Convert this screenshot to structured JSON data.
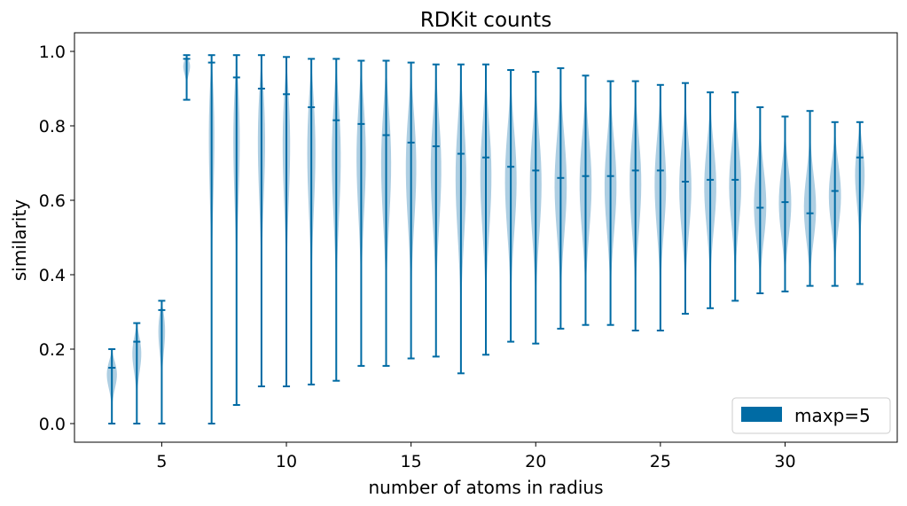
{
  "chart_data": {
    "type": "violin",
    "title": "RDKit counts",
    "xlabel": "number of atoms in radius",
    "ylabel": "similarity",
    "xlim": [
      1.5,
      34.5
    ],
    "ylim": [
      -0.05,
      1.05
    ],
    "xticks": [
      5,
      10,
      15,
      20,
      25,
      30
    ],
    "yticks": [
      0.0,
      0.2,
      0.4,
      0.6,
      0.8,
      1.0
    ],
    "ytick_labels": [
      "0.0",
      "0.2",
      "0.4",
      "0.6",
      "0.8",
      "1.0"
    ],
    "legend": {
      "placement": "lower-right",
      "label": "maxp=5",
      "color": "#006ba4"
    },
    "colors": {
      "line": "#006ba4",
      "body": "#a9cbe0"
    },
    "series": [
      {
        "x": 3,
        "min": 0.0,
        "max": 0.2,
        "median": 0.15
      },
      {
        "x": 4,
        "min": 0.0,
        "max": 0.27,
        "median": 0.22
      },
      {
        "x": 5,
        "min": 0.0,
        "max": 0.33,
        "median": 0.305
      },
      {
        "x": 6,
        "min": 0.87,
        "max": 0.99,
        "median": 0.98
      },
      {
        "x": 7,
        "min": 0.0,
        "max": 0.99,
        "median": 0.97
      },
      {
        "x": 8,
        "min": 0.05,
        "max": 0.99,
        "median": 0.93
      },
      {
        "x": 9,
        "min": 0.1,
        "max": 0.99,
        "median": 0.9
      },
      {
        "x": 10,
        "min": 0.1,
        "max": 0.985,
        "median": 0.885
      },
      {
        "x": 11,
        "min": 0.105,
        "max": 0.98,
        "median": 0.85
      },
      {
        "x": 12,
        "min": 0.115,
        "max": 0.98,
        "median": 0.815
      },
      {
        "x": 13,
        "min": 0.155,
        "max": 0.975,
        "median": 0.805
      },
      {
        "x": 14,
        "min": 0.155,
        "max": 0.975,
        "median": 0.775
      },
      {
        "x": 15,
        "min": 0.175,
        "max": 0.97,
        "median": 0.755
      },
      {
        "x": 16,
        "min": 0.18,
        "max": 0.965,
        "median": 0.745
      },
      {
        "x": 17,
        "min": 0.135,
        "max": 0.965,
        "median": 0.725
      },
      {
        "x": 18,
        "min": 0.185,
        "max": 0.965,
        "median": 0.715
      },
      {
        "x": 19,
        "min": 0.22,
        "max": 0.95,
        "median": 0.69
      },
      {
        "x": 20,
        "min": 0.215,
        "max": 0.945,
        "median": 0.68
      },
      {
        "x": 21,
        "min": 0.255,
        "max": 0.955,
        "median": 0.66
      },
      {
        "x": 22,
        "min": 0.265,
        "max": 0.935,
        "median": 0.665
      },
      {
        "x": 23,
        "min": 0.265,
        "max": 0.92,
        "median": 0.665
      },
      {
        "x": 24,
        "min": 0.25,
        "max": 0.92,
        "median": 0.68
      },
      {
        "x": 25,
        "min": 0.25,
        "max": 0.91,
        "median": 0.68
      },
      {
        "x": 26,
        "min": 0.295,
        "max": 0.915,
        "median": 0.65
      },
      {
        "x": 27,
        "min": 0.31,
        "max": 0.89,
        "median": 0.655
      },
      {
        "x": 28,
        "min": 0.33,
        "max": 0.89,
        "median": 0.655
      },
      {
        "x": 29,
        "min": 0.35,
        "max": 0.85,
        "median": 0.58
      },
      {
        "x": 30,
        "min": 0.355,
        "max": 0.825,
        "median": 0.595
      },
      {
        "x": 31,
        "min": 0.37,
        "max": 0.84,
        "median": 0.565
      },
      {
        "x": 32,
        "min": 0.37,
        "max": 0.81,
        "median": 0.625
      },
      {
        "x": 33,
        "min": 0.375,
        "max": 0.81,
        "median": 0.715
      }
    ]
  }
}
